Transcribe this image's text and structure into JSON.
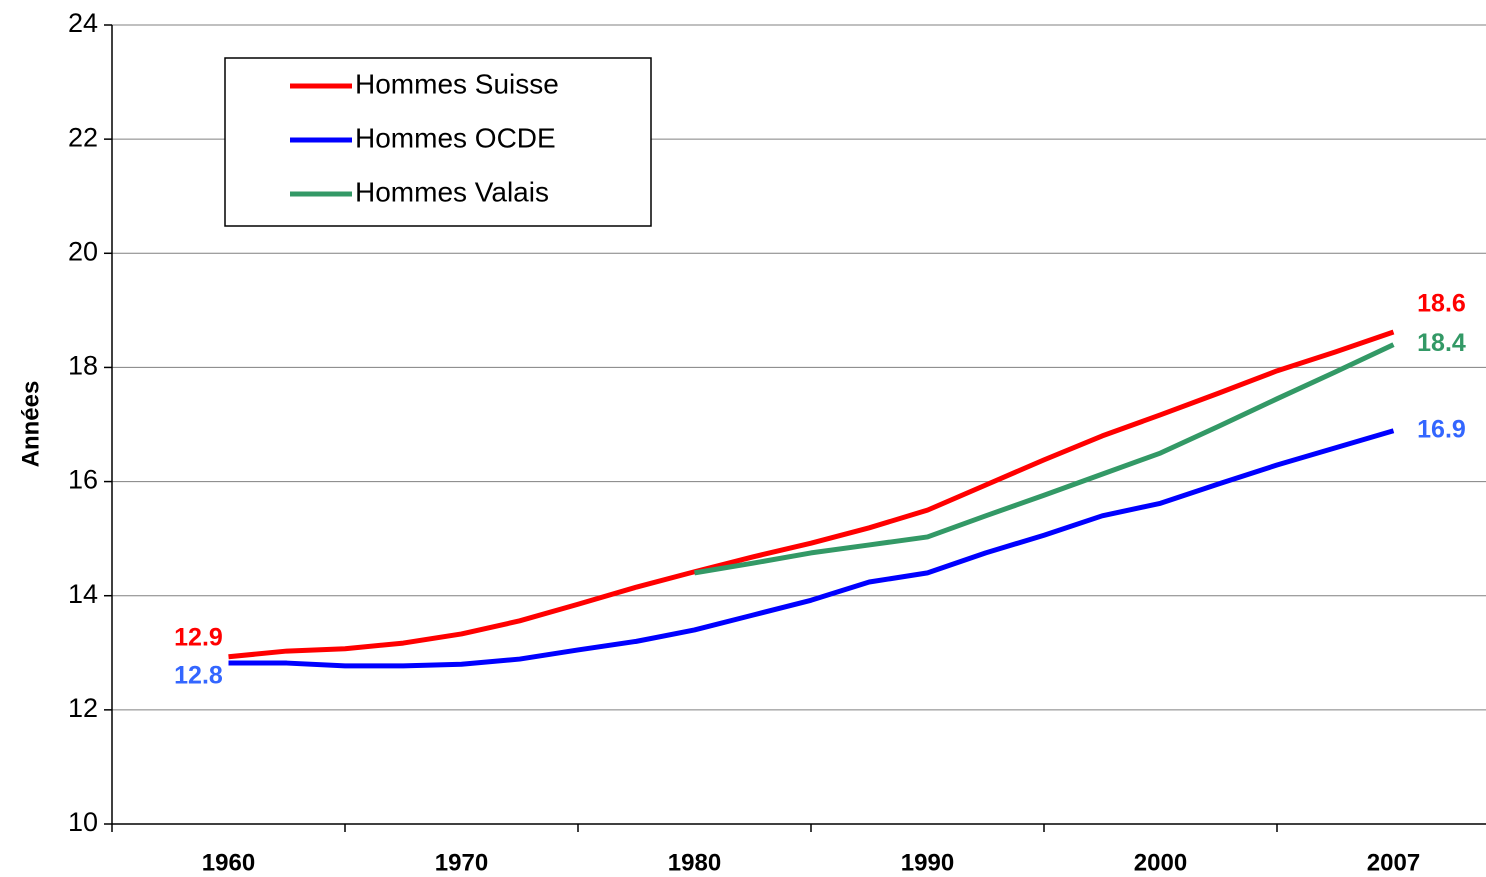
{
  "chart_data": {
    "type": "line",
    "y_label": "Années",
    "categories": [
      "1960",
      null,
      null,
      null,
      "1970",
      null,
      null,
      null,
      "1980",
      null,
      null,
      null,
      "1990",
      null,
      null,
      null,
      "2000",
      null,
      null,
      null,
      "2007"
    ],
    "ylim": [
      10,
      24
    ],
    "yticks": [
      10,
      12,
      14,
      16,
      18,
      20,
      22,
      24
    ],
    "grid": true,
    "legend": "upper left",
    "series": [
      {
        "name": "Hommes Suisse",
        "color": "#ff0000",
        "label_color": "#ff0000",
        "values": [
          12.93,
          13.03,
          13.07,
          13.17,
          13.33,
          13.56,
          13.85,
          14.15,
          14.42,
          14.68,
          14.92,
          15.19,
          15.5,
          15.94,
          16.38,
          16.8,
          17.17,
          17.55,
          17.94,
          18.27,
          18.62
        ],
        "value_labels": [
          "12.9",
          null,
          null,
          null,
          null,
          null,
          null,
          null,
          null,
          null,
          null,
          null,
          null,
          null,
          null,
          null,
          null,
          null,
          null,
          null,
          "18.6"
        ]
      },
      {
        "name": "Hommes OCDE",
        "color": "#0000ff",
        "label_color": "#3366ff",
        "values": [
          12.82,
          12.82,
          12.77,
          12.77,
          12.8,
          12.89,
          13.05,
          13.2,
          13.4,
          13.66,
          13.92,
          14.24,
          14.4,
          14.75,
          15.06,
          15.4,
          15.62,
          15.96,
          16.29,
          16.59,
          16.89
        ],
        "value_labels": [
          "12.8",
          null,
          null,
          null,
          null,
          null,
          null,
          null,
          null,
          null,
          null,
          null,
          null,
          null,
          null,
          null,
          null,
          null,
          null,
          null,
          "16.9"
        ]
      },
      {
        "name": "Hommes Valais",
        "color": "#339966",
        "label_color": "#339966",
        "values": [
          null,
          null,
          null,
          null,
          null,
          null,
          null,
          null,
          14.4,
          14.57,
          14.75,
          14.89,
          15.03,
          15.4,
          15.76,
          16.13,
          16.5,
          16.97,
          17.45,
          17.92,
          18.4
        ],
        "value_labels": [
          null,
          null,
          null,
          null,
          null,
          null,
          null,
          null,
          null,
          null,
          null,
          null,
          null,
          null,
          null,
          null,
          null,
          null,
          null,
          null,
          "18.4"
        ]
      }
    ]
  }
}
